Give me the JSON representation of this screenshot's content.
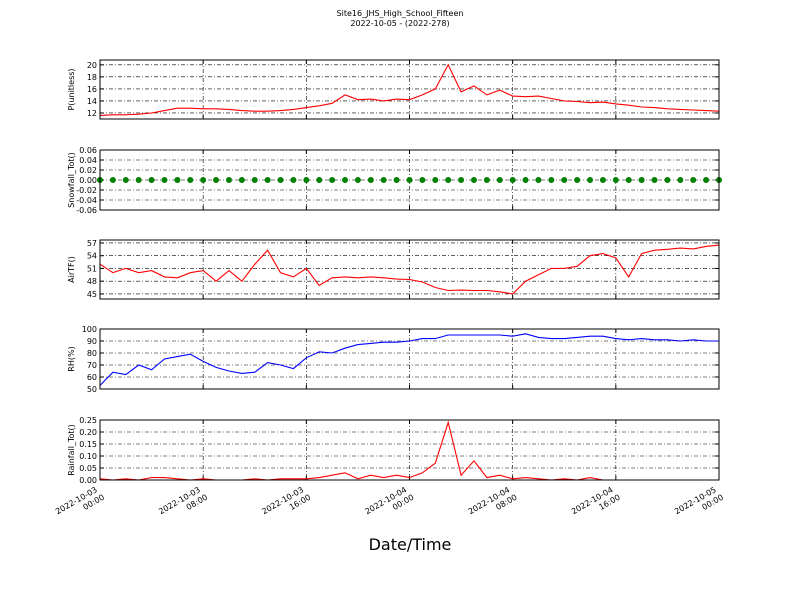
{
  "chart_data": [
    {
      "type": "line",
      "title": "Site16_JHS_High_School_Fifteen",
      "subtitle": "2022-10-05 - (2022-278)",
      "ylabel": "P(unitless)",
      "xlim": [
        "2022-10-03 00:00",
        "2022-10-05 00:00"
      ],
      "xticks": [
        "2022-10-03 00:00",
        "2022-10-03 08:00",
        "2022-10-03 16:00",
        "2022-10-04 00:00",
        "2022-10-04 08:00",
        "2022-10-04 16:00",
        "2022-10-05 00:00"
      ],
      "ylim": [
        11,
        20.8
      ],
      "yticks": [
        12,
        14,
        16,
        18,
        20
      ],
      "grid": true,
      "x": [
        "2022-10-03 00:00",
        "2022-10-03 01:00",
        "2022-10-03 02:00",
        "2022-10-03 03:00",
        "2022-10-03 04:00",
        "2022-10-03 05:00",
        "2022-10-03 06:00",
        "2022-10-03 07:00",
        "2022-10-03 08:00",
        "2022-10-03 09:00",
        "2022-10-03 10:00",
        "2022-10-03 11:00",
        "2022-10-03 12:00",
        "2022-10-03 13:00",
        "2022-10-03 14:00",
        "2022-10-03 15:00",
        "2022-10-03 16:00",
        "2022-10-03 17:00",
        "2022-10-03 18:00",
        "2022-10-03 19:00",
        "2022-10-03 20:00",
        "2022-10-03 21:00",
        "2022-10-03 22:00",
        "2022-10-03 23:00",
        "2022-10-04 00:00",
        "2022-10-04 01:00",
        "2022-10-04 02:00",
        "2022-10-04 03:00",
        "2022-10-04 04:00",
        "2022-10-04 05:00",
        "2022-10-04 06:00",
        "2022-10-04 07:00",
        "2022-10-04 08:00",
        "2022-10-04 09:00",
        "2022-10-04 10:00",
        "2022-10-04 11:00",
        "2022-10-04 12:00",
        "2022-10-04 13:00",
        "2022-10-04 14:00",
        "2022-10-04 15:00",
        "2022-10-04 16:00",
        "2022-10-04 17:00",
        "2022-10-04 18:00",
        "2022-10-04 19:00",
        "2022-10-04 20:00",
        "2022-10-04 21:00",
        "2022-10-04 22:00",
        "2022-10-04 23:00",
        "2022-10-05 00:00"
      ],
      "series": [
        {
          "color": "#ff0000",
          "values": [
            11.6,
            11.7,
            11.7,
            11.8,
            12.0,
            12.4,
            12.8,
            12.8,
            12.7,
            12.7,
            12.6,
            12.4,
            12.3,
            12.3,
            12.4,
            12.6,
            12.9,
            13.2,
            13.6,
            15.0,
            14.2,
            14.3,
            14.0,
            14.3,
            14.2,
            15.0,
            16.0,
            20.0,
            15.5,
            16.5,
            15.0,
            15.8,
            14.8,
            14.7,
            14.8,
            14.4,
            14.0,
            13.9,
            13.7,
            13.8,
            13.5,
            13.3,
            13.0,
            12.9,
            12.7,
            12.6,
            12.5,
            12.4,
            12.3
          ]
        }
      ]
    },
    {
      "type": "scatter",
      "ylabel": "Snowfall_Tot()",
      "xlim": [
        "2022-10-03 00:00",
        "2022-10-05 00:00"
      ],
      "xticks": [
        "2022-10-03 00:00",
        "2022-10-03 08:00",
        "2022-10-03 16:00",
        "2022-10-04 00:00",
        "2022-10-04 08:00",
        "2022-10-04 16:00",
        "2022-10-05 00:00"
      ],
      "ylim": [
        -0.06,
        0.06
      ],
      "yticks": [
        -0.06,
        -0.04,
        -0.02,
        {
          "value": 0,
          "label": "0.00"
        },
        0.02,
        0.04,
        0.06
      ],
      "grid": true,
      "x": [
        "2022-10-03 00:00",
        "2022-10-03 01:00",
        "2022-10-03 02:00",
        "2022-10-03 03:00",
        "2022-10-03 04:00",
        "2022-10-03 05:00",
        "2022-10-03 06:00",
        "2022-10-03 07:00",
        "2022-10-03 08:00",
        "2022-10-03 09:00",
        "2022-10-03 10:00",
        "2022-10-03 11:00",
        "2022-10-03 12:00",
        "2022-10-03 13:00",
        "2022-10-03 14:00",
        "2022-10-03 15:00",
        "2022-10-03 16:00",
        "2022-10-03 17:00",
        "2022-10-03 18:00",
        "2022-10-03 19:00",
        "2022-10-03 20:00",
        "2022-10-03 21:00",
        "2022-10-03 22:00",
        "2022-10-03 23:00",
        "2022-10-04 00:00",
        "2022-10-04 01:00",
        "2022-10-04 02:00",
        "2022-10-04 03:00",
        "2022-10-04 04:00",
        "2022-10-04 05:00",
        "2022-10-04 06:00",
        "2022-10-04 07:00",
        "2022-10-04 08:00",
        "2022-10-04 09:00",
        "2022-10-04 10:00",
        "2022-10-04 11:00",
        "2022-10-04 12:00",
        "2022-10-04 13:00",
        "2022-10-04 14:00",
        "2022-10-04 15:00",
        "2022-10-04 16:00",
        "2022-10-04 17:00",
        "2022-10-04 18:00",
        "2022-10-04 19:00",
        "2022-10-04 20:00",
        "2022-10-04 21:00",
        "2022-10-04 22:00",
        "2022-10-04 23:00",
        "2022-10-05 00:00"
      ],
      "series": [
        {
          "color": "#008000",
          "values": [
            0,
            0,
            0,
            0,
            0,
            0,
            0,
            0,
            0,
            0,
            0,
            0,
            0,
            0,
            0,
            0,
            0,
            0,
            0,
            0,
            0,
            0,
            0,
            0,
            0,
            0,
            0,
            0,
            0,
            0,
            0,
            0,
            0,
            0,
            0,
            0,
            0,
            0,
            0,
            0,
            0,
            0,
            0,
            0,
            0,
            0,
            0,
            0,
            0
          ]
        }
      ]
    },
    {
      "type": "line",
      "ylabel": "AirTF()",
      "xlim": [
        "2022-10-03 00:00",
        "2022-10-05 00:00"
      ],
      "xticks": [
        "2022-10-03 00:00",
        "2022-10-03 08:00",
        "2022-10-03 16:00",
        "2022-10-04 00:00",
        "2022-10-04 08:00",
        "2022-10-04 16:00",
        "2022-10-05 00:00"
      ],
      "ylim": [
        43.8,
        57.7
      ],
      "yticks": [
        45,
        48,
        51,
        54,
        57
      ],
      "grid": true,
      "x": [
        "2022-10-03 00:00",
        "2022-10-03 01:00",
        "2022-10-03 02:00",
        "2022-10-03 03:00",
        "2022-10-03 04:00",
        "2022-10-03 05:00",
        "2022-10-03 06:00",
        "2022-10-03 07:00",
        "2022-10-03 08:00",
        "2022-10-03 09:00",
        "2022-10-03 10:00",
        "2022-10-03 11:00",
        "2022-10-03 12:00",
        "2022-10-03 13:00",
        "2022-10-03 14:00",
        "2022-10-03 15:00",
        "2022-10-03 16:00",
        "2022-10-03 17:00",
        "2022-10-03 18:00",
        "2022-10-03 19:00",
        "2022-10-03 20:00",
        "2022-10-03 21:00",
        "2022-10-03 22:00",
        "2022-10-03 23:00",
        "2022-10-04 00:00",
        "2022-10-04 01:00",
        "2022-10-04 02:00",
        "2022-10-04 03:00",
        "2022-10-04 04:00",
        "2022-10-04 05:00",
        "2022-10-04 06:00",
        "2022-10-04 07:00",
        "2022-10-04 08:00",
        "2022-10-04 09:00",
        "2022-10-04 10:00",
        "2022-10-04 11:00",
        "2022-10-04 12:00",
        "2022-10-04 13:00",
        "2022-10-04 14:00",
        "2022-10-04 15:00",
        "2022-10-04 16:00",
        "2022-10-04 17:00",
        "2022-10-04 18:00",
        "2022-10-04 19:00",
        "2022-10-04 20:00",
        "2022-10-04 21:00",
        "2022-10-04 22:00",
        "2022-10-04 23:00",
        "2022-10-05 00:00"
      ],
      "series": [
        {
          "color": "#ff0000",
          "values": [
            52,
            50,
            51,
            50,
            50.5,
            49,
            48.8,
            50,
            50.5,
            48,
            50.5,
            48,
            52,
            55.3,
            50,
            49,
            51,
            47,
            48.8,
            49,
            48.8,
            49,
            48.8,
            48.5,
            48.4,
            47.8,
            46.5,
            45.8,
            45.9,
            45.8,
            45.8,
            45.5,
            45.0,
            48,
            49.5,
            51,
            51,
            51.5,
            54,
            54.5,
            53.5,
            49,
            54.5,
            55.3,
            55.5,
            55.8,
            55.6,
            56.2,
            56.5
          ]
        }
      ]
    },
    {
      "type": "line",
      "ylabel": "RH(%)",
      "xlim": [
        "2022-10-03 00:00",
        "2022-10-05 00:00"
      ],
      "xticks": [
        "2022-10-03 00:00",
        "2022-10-03 08:00",
        "2022-10-03 16:00",
        "2022-10-04 00:00",
        "2022-10-04 08:00",
        "2022-10-04 16:00",
        "2022-10-05 00:00"
      ],
      "ylim": [
        50,
        100
      ],
      "yticks": [
        50,
        60,
        70,
        80,
        90,
        100
      ],
      "grid": true,
      "x": [
        "2022-10-03 00:00",
        "2022-10-03 01:00",
        "2022-10-03 02:00",
        "2022-10-03 03:00",
        "2022-10-03 04:00",
        "2022-10-03 05:00",
        "2022-10-03 06:00",
        "2022-10-03 07:00",
        "2022-10-03 08:00",
        "2022-10-03 09:00",
        "2022-10-03 10:00",
        "2022-10-03 11:00",
        "2022-10-03 12:00",
        "2022-10-03 13:00",
        "2022-10-03 14:00",
        "2022-10-03 15:00",
        "2022-10-03 16:00",
        "2022-10-03 17:00",
        "2022-10-03 18:00",
        "2022-10-03 19:00",
        "2022-10-03 20:00",
        "2022-10-03 21:00",
        "2022-10-03 22:00",
        "2022-10-03 23:00",
        "2022-10-04 00:00",
        "2022-10-04 01:00",
        "2022-10-04 02:00",
        "2022-10-04 03:00",
        "2022-10-04 04:00",
        "2022-10-04 05:00",
        "2022-10-04 06:00",
        "2022-10-04 07:00",
        "2022-10-04 08:00",
        "2022-10-04 09:00",
        "2022-10-04 10:00",
        "2022-10-04 11:00",
        "2022-10-04 12:00",
        "2022-10-04 13:00",
        "2022-10-04 14:00",
        "2022-10-04 15:00",
        "2022-10-04 16:00",
        "2022-10-04 17:00",
        "2022-10-04 18:00",
        "2022-10-04 19:00",
        "2022-10-04 20:00",
        "2022-10-04 21:00",
        "2022-10-04 22:00",
        "2022-10-04 23:00",
        "2022-10-05 00:00"
      ],
      "series": [
        {
          "color": "#0000ff",
          "values": [
            53,
            64,
            62,
            70,
            66,
            75,
            77,
            79,
            73,
            68,
            65,
            63,
            64,
            72,
            70,
            67,
            76,
            81,
            80,
            84,
            87,
            88,
            89,
            89,
            90,
            92,
            92,
            95,
            95,
            95,
            95,
            95,
            94,
            96,
            93,
            92,
            92,
            93,
            94,
            94,
            92,
            91,
            92,
            91,
            91,
            90,
            91,
            90,
            90
          ]
        }
      ]
    },
    {
      "type": "line",
      "ylabel": "Rainfall_Tot()",
      "xlabel": "Date/Time",
      "xlim": [
        "2022-10-03 00:00",
        "2022-10-05 00:00"
      ],
      "xticks": [
        "2022-10-03 00:00",
        "2022-10-03 08:00",
        "2022-10-03 16:00",
        "2022-10-04 00:00",
        "2022-10-04 08:00",
        "2022-10-04 16:00",
        "2022-10-05 00:00"
      ],
      "ylim": [
        0,
        0.25
      ],
      "yticks": [
        {
          "value": 0,
          "label": "0.00"
        },
        0.05,
        {
          "value": 0.1,
          "label": "0.10"
        },
        0.15,
        {
          "value": 0.2,
          "label": "0.20"
        },
        0.25
      ],
      "grid": true,
      "x": [
        "2022-10-03 00:00",
        "2022-10-03 01:00",
        "2022-10-03 02:00",
        "2022-10-03 03:00",
        "2022-10-03 04:00",
        "2022-10-03 05:00",
        "2022-10-03 06:00",
        "2022-10-03 07:00",
        "2022-10-03 08:00",
        "2022-10-03 09:00",
        "2022-10-03 10:00",
        "2022-10-03 11:00",
        "2022-10-03 12:00",
        "2022-10-03 13:00",
        "2022-10-03 14:00",
        "2022-10-03 15:00",
        "2022-10-03 16:00",
        "2022-10-03 17:00",
        "2022-10-03 18:00",
        "2022-10-03 19:00",
        "2022-10-03 20:00",
        "2022-10-03 21:00",
        "2022-10-03 22:00",
        "2022-10-03 23:00",
        "2022-10-04 00:00",
        "2022-10-04 01:00",
        "2022-10-04 02:00",
        "2022-10-04 03:00",
        "2022-10-04 04:00",
        "2022-10-04 05:00",
        "2022-10-04 06:00",
        "2022-10-04 07:00",
        "2022-10-04 08:00",
        "2022-10-04 09:00",
        "2022-10-04 10:00",
        "2022-10-04 11:00",
        "2022-10-04 12:00",
        "2022-10-04 13:00",
        "2022-10-04 14:00",
        "2022-10-04 15:00",
        "2022-10-04 16:00",
        "2022-10-04 17:00",
        "2022-10-04 18:00",
        "2022-10-04 19:00",
        "2022-10-04 20:00",
        "2022-10-04 21:00",
        "2022-10-04 22:00",
        "2022-10-04 23:00",
        "2022-10-05 00:00"
      ],
      "series": [
        {
          "color": "#ff0000",
          "values": [
            0.005,
            0,
            0.005,
            0,
            0.01,
            0.01,
            0.005,
            0,
            0.005,
            0,
            0,
            0,
            0.005,
            0,
            0.005,
            0.005,
            0.005,
            0.01,
            0.02,
            0.03,
            0.005,
            0.02,
            0.01,
            0.02,
            0.01,
            0.03,
            0.07,
            0.24,
            0.02,
            0.08,
            0.01,
            0.02,
            0.005,
            0.01,
            0.005,
            0,
            0.005,
            0,
            0.01,
            0,
            0,
            0,
            0,
            0,
            0,
            0,
            0,
            0,
            0
          ]
        }
      ]
    }
  ]
}
